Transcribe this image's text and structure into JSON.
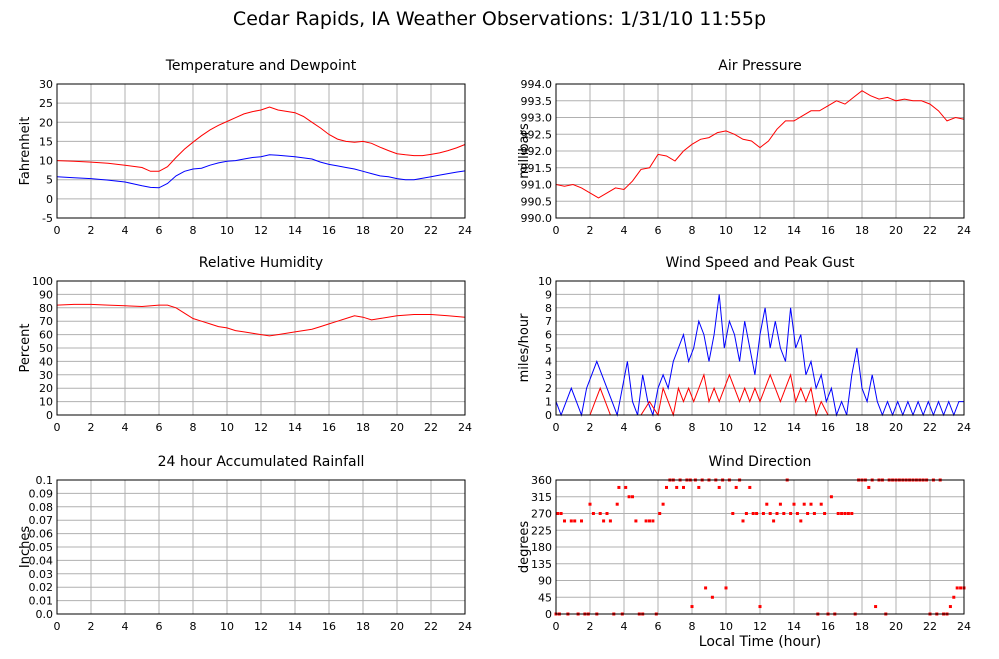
{
  "page": {
    "title": "Cedar Rapids, IA Weather Observations: 1/31/10 11:55p",
    "x_axis_label": "Local Time (hour)"
  },
  "colors": {
    "series_red": "#ff0000",
    "series_blue": "#0000ff",
    "grid": "#b0b0b0",
    "frame": "#000000"
  },
  "chart_data": [
    {
      "id": "temp",
      "type": "line",
      "title": "Temperature and Dewpoint",
      "xlabel": "",
      "ylabel": "Fahrenheit",
      "xlim": [
        0,
        24
      ],
      "ylim": [
        -5,
        30
      ],
      "xticks": [
        0,
        2,
        4,
        6,
        8,
        10,
        12,
        14,
        16,
        18,
        20,
        22,
        24
      ],
      "yticks": [
        -5,
        0,
        5,
        10,
        15,
        20,
        25,
        30
      ],
      "grid": true,
      "series": [
        {
          "color": "#ff0000",
          "x": [
            0,
            1,
            2,
            3,
            4,
            5,
            5.5,
            6,
            6.5,
            7,
            7.5,
            8,
            8.5,
            9,
            9.5,
            10,
            10.5,
            11,
            11.5,
            12,
            12.5,
            13,
            14,
            14.5,
            15,
            15.5,
            16,
            16.5,
            17,
            17.5,
            18,
            18.5,
            19,
            19.5,
            20,
            20.5,
            21,
            21.5,
            22,
            22.5,
            23,
            23.5,
            24
          ],
          "y": [
            10,
            9.8,
            9.6,
            9.3,
            8.8,
            8.2,
            7.2,
            7.2,
            8.4,
            10.8,
            13,
            14.8,
            16.5,
            18,
            19.2,
            20.2,
            21.2,
            22.2,
            22.8,
            23.2,
            24,
            23.2,
            22.5,
            21.5,
            20,
            18.5,
            16.8,
            15.6,
            15,
            14.8,
            15,
            14.5,
            13.5,
            12.6,
            11.8,
            11.5,
            11.3,
            11.3,
            11.6,
            12,
            12.6,
            13.3,
            14.2
          ]
        },
        {
          "color": "#0000ff",
          "x": [
            0,
            1,
            2,
            3,
            4,
            4.5,
            5,
            5.5,
            6,
            6.5,
            7,
            7.5,
            8,
            8.5,
            9,
            9.5,
            10,
            10.5,
            11,
            11.5,
            12,
            12.5,
            13,
            14,
            15,
            15.5,
            16,
            16.5,
            17,
            17.5,
            18,
            18.5,
            19,
            19.5,
            20,
            20.5,
            21,
            21.5,
            22,
            22.5,
            23,
            23.5,
            24
          ],
          "y": [
            5.8,
            5.5,
            5.3,
            4.9,
            4.4,
            3.9,
            3.4,
            3,
            2.9,
            4,
            6,
            7.2,
            7.8,
            8,
            8.8,
            9.4,
            9.8,
            10,
            10.4,
            10.8,
            11,
            11.5,
            11.4,
            11,
            10.4,
            9.6,
            9,
            8.6,
            8.2,
            7.8,
            7.2,
            6.6,
            6,
            5.8,
            5.3,
            5,
            5,
            5.4,
            5.8,
            6.2,
            6.6,
            7,
            7.3
          ]
        }
      ]
    },
    {
      "id": "pressure",
      "type": "line",
      "title": "Air Pressure",
      "xlabel": "",
      "ylabel": "millibars",
      "xlim": [
        0,
        24
      ],
      "ylim": [
        990,
        994
      ],
      "xticks": [
        0,
        2,
        4,
        6,
        8,
        10,
        12,
        14,
        16,
        18,
        20,
        22,
        24
      ],
      "yticks": [
        990.0,
        990.5,
        991.0,
        991.5,
        992.0,
        992.5,
        993.0,
        993.5,
        994.0
      ],
      "ytick_labels": [
        "990.0",
        "990.5",
        "991.0",
        "991.5",
        "992.0",
        "992.5",
        "993.0",
        "993.5",
        "994.0"
      ],
      "grid": true,
      "series": [
        {
          "color": "#ff0000",
          "x": [
            0,
            0.5,
            1,
            1.5,
            2,
            2.5,
            3,
            3.5,
            4,
            4.5,
            5,
            5.5,
            6,
            6.5,
            7,
            7.5,
            8,
            8.5,
            9,
            9.5,
            10,
            10.5,
            11,
            11.5,
            12,
            12.5,
            13,
            13.5,
            14,
            14.5,
            15,
            15.5,
            16,
            16.5,
            17,
            17.5,
            18,
            18.5,
            19,
            19.5,
            20,
            20.5,
            21,
            21.5,
            22,
            22.5,
            23,
            23.5,
            24
          ],
          "y": [
            991.0,
            990.95,
            991.0,
            990.9,
            990.75,
            990.6,
            990.75,
            990.9,
            990.85,
            991.1,
            991.45,
            991.5,
            991.9,
            991.85,
            991.7,
            992.0,
            992.2,
            992.35,
            992.4,
            992.55,
            992.6,
            992.5,
            992.35,
            992.3,
            992.1,
            992.3,
            992.65,
            992.9,
            992.9,
            993.05,
            993.2,
            993.2,
            993.35,
            993.5,
            993.4,
            993.6,
            993.8,
            993.65,
            993.55,
            993.6,
            993.5,
            993.55,
            993.5,
            993.5,
            993.4,
            993.2,
            992.9,
            993.0,
            992.95
          ]
        }
      ]
    },
    {
      "id": "humidity",
      "type": "line",
      "title": "Relative Humidity",
      "xlabel": "",
      "ylabel": "Percent",
      "xlim": [
        0,
        24
      ],
      "ylim": [
        0,
        100
      ],
      "xticks": [
        0,
        2,
        4,
        6,
        8,
        10,
        12,
        14,
        16,
        18,
        20,
        22,
        24
      ],
      "yticks": [
        0,
        10,
        20,
        30,
        40,
        50,
        60,
        70,
        80,
        90,
        100
      ],
      "grid": true,
      "series": [
        {
          "color": "#ff0000",
          "x": [
            0,
            1,
            2,
            3,
            4,
            5,
            6,
            6.5,
            7,
            7.5,
            8,
            8.5,
            9,
            9.5,
            10,
            10.5,
            11,
            11.5,
            12,
            12.5,
            13,
            13.5,
            14,
            15,
            15.5,
            16,
            16.5,
            17,
            17.5,
            18,
            18.5,
            19,
            20,
            21,
            22,
            23,
            24
          ],
          "y": [
            82,
            82.5,
            82.5,
            82,
            81.5,
            81,
            82,
            82,
            80,
            76,
            72,
            70,
            68,
            66,
            65,
            63,
            62,
            61,
            60,
            59,
            60,
            61,
            62,
            64,
            66,
            68,
            70,
            72,
            74,
            73,
            71,
            72,
            74,
            75,
            75,
            74,
            73
          ]
        }
      ]
    },
    {
      "id": "wind",
      "type": "line",
      "title": "Wind Speed and Peak Gust",
      "xlabel": "",
      "ylabel": "miles/hour",
      "xlim": [
        0,
        24
      ],
      "ylim": [
        0,
        10
      ],
      "xticks": [
        0,
        2,
        4,
        6,
        8,
        10,
        12,
        14,
        16,
        18,
        20,
        22,
        24
      ],
      "yticks": [
        0,
        1,
        2,
        3,
        4,
        5,
        6,
        7,
        8,
        9,
        10
      ],
      "grid": true,
      "series": [
        {
          "color": "#0000ff",
          "x": [
            0,
            0.3,
            0.6,
            0.9,
            1.2,
            1.5,
            1.8,
            2.1,
            2.4,
            2.7,
            3,
            3.3,
            3.6,
            3.9,
            4.2,
            4.5,
            4.8,
            5.1,
            5.4,
            5.7,
            6,
            6.3,
            6.6,
            6.9,
            7.2,
            7.5,
            7.8,
            8.1,
            8.4,
            8.7,
            9,
            9.3,
            9.6,
            9.9,
            10.2,
            10.5,
            10.8,
            11.1,
            11.4,
            11.7,
            12,
            12.3,
            12.6,
            12.9,
            13.2,
            13.5,
            13.8,
            14.1,
            14.4,
            14.7,
            15,
            15.3,
            15.6,
            15.9,
            16.2,
            16.5,
            16.8,
            17.1,
            17.4,
            17.7,
            18,
            18.3,
            18.6,
            18.9,
            19.2,
            19.5,
            19.8,
            20.1,
            20.4,
            20.7,
            21,
            21.3,
            21.6,
            21.9,
            22.2,
            22.5,
            22.8,
            23.1,
            23.4,
            23.7,
            24
          ],
          "y": [
            1,
            0,
            1,
            2,
            1,
            0,
            2,
            3,
            4,
            3,
            2,
            1,
            0,
            2,
            4,
            1,
            0,
            3,
            1,
            0,
            2,
            3,
            2,
            4,
            5,
            6,
            4,
            5,
            7,
            6,
            4,
            6,
            9,
            5,
            7,
            6,
            4,
            7,
            5,
            3,
            6,
            8,
            5,
            7,
            5,
            4,
            8,
            5,
            6,
            3,
            4,
            2,
            3,
            1,
            2,
            0,
            1,
            0,
            3,
            5,
            2,
            1,
            3,
            1,
            0,
            1,
            0,
            1,
            0,
            1,
            0,
            1,
            0,
            1,
            0,
            1,
            0,
            1,
            0,
            1,
            1
          ]
        },
        {
          "color": "#ff0000",
          "x": [
            0,
            2,
            2.3,
            2.6,
            2.9,
            3.2,
            3.5,
            5,
            5.5,
            6,
            6.3,
            6.6,
            6.9,
            7.2,
            7.5,
            7.8,
            8.1,
            8.4,
            8.7,
            9,
            9.3,
            9.6,
            9.9,
            10.2,
            10.5,
            10.8,
            11.1,
            11.4,
            11.7,
            12,
            12.3,
            12.6,
            12.9,
            13.2,
            13.5,
            13.8,
            14.1,
            14.4,
            14.7,
            15,
            15.3,
            15.6,
            16,
            24
          ],
          "y": [
            0,
            0,
            1,
            2,
            1,
            0,
            0,
            0,
            1,
            0,
            2,
            1,
            0,
            2,
            1,
            2,
            1,
            2,
            3,
            1,
            2,
            1,
            2,
            3,
            2,
            1,
            2,
            1,
            2,
            1,
            2,
            3,
            2,
            1,
            2,
            3,
            1,
            2,
            1,
            2,
            0,
            1,
            0,
            0
          ]
        }
      ]
    },
    {
      "id": "rain",
      "type": "line",
      "title": "24 hour Accumulated Rainfall",
      "xlabel": "",
      "ylabel": "Inches",
      "xlim": [
        0,
        24
      ],
      "ylim": [
        0,
        0.1
      ],
      "xticks": [
        0,
        2,
        4,
        6,
        8,
        10,
        12,
        14,
        16,
        18,
        20,
        22,
        24
      ],
      "yticks": [
        0,
        0.01,
        0.02,
        0.03,
        0.04,
        0.05,
        0.06,
        0.07,
        0.08,
        0.09,
        0.1
      ],
      "ytick_labels": [
        "0.0",
        "0.01",
        "0.02",
        "0.03",
        "0.04",
        "0.05",
        "0.06",
        "0.07",
        "0.08",
        "0.09",
        "0.1"
      ],
      "grid": true,
      "series": [
        {
          "color": "#ff0000",
          "x": [
            0,
            24
          ],
          "y": [
            0,
            0
          ]
        }
      ]
    },
    {
      "id": "direction",
      "type": "scatter",
      "title": "Wind Direction",
      "xlabel": "Local Time (hour)",
      "ylabel": "degrees",
      "xlim": [
        0,
        24
      ],
      "ylim": [
        0,
        360
      ],
      "xticks": [
        0,
        2,
        4,
        6,
        8,
        10,
        12,
        14,
        16,
        18,
        20,
        22,
        24
      ],
      "yticks": [
        0,
        45,
        90,
        135,
        180,
        225,
        270,
        315,
        360
      ],
      "grid": true,
      "series": [
        {
          "color": "#ff0000",
          "x": [
            0,
            0.1,
            0.2,
            0.3,
            0.5,
            0.7,
            0.9,
            1.1,
            1.3,
            1.5,
            1.7,
            1.9,
            2.0,
            2.2,
            2.4,
            2.6,
            2.8,
            3.0,
            3.2,
            3.4,
            3.6,
            3.7,
            3.9,
            4.1,
            4.3,
            4.5,
            4.7,
            4.9,
            5.1,
            5.3,
            5.5,
            5.7,
            5.9,
            6.1,
            6.3,
            6.5,
            6.7,
            6.9,
            7.1,
            7.3,
            7.5,
            7.7,
            7.9,
            8.0,
            8.2,
            8.4,
            8.6,
            8.8,
            9.0,
            9.2,
            9.4,
            9.6,
            9.8,
            10.0,
            10.2,
            10.4,
            10.6,
            10.8,
            11.0,
            11.2,
            11.4,
            11.6,
            11.8,
            12.0,
            12.2,
            12.4,
            12.6,
            12.8,
            13.0,
            13.2,
            13.4,
            13.6,
            13.8,
            14.0,
            14.2,
            14.4,
            14.6,
            14.8,
            15.0,
            15.2,
            15.4,
            15.6,
            15.8,
            16.0,
            16.2,
            16.4,
            16.6,
            16.8,
            17.0,
            17.2,
            17.4,
            17.6,
            17.8,
            18.0,
            18.2,
            18.4,
            18.6,
            18.8,
            19.0,
            19.2,
            19.4,
            19.6,
            19.8,
            20.0,
            20.2,
            20.4,
            20.6,
            20.8,
            21.0,
            21.2,
            21.4,
            21.6,
            21.8,
            22.0,
            22.2,
            22.4,
            22.6,
            22.8,
            23.0,
            23.2,
            23.4,
            23.6,
            23.8,
            24.0
          ],
          "y": [
            0,
            270,
            0,
            270,
            250,
            0,
            250,
            250,
            0,
            250,
            0,
            0,
            295,
            270,
            0,
            270,
            250,
            270,
            250,
            0,
            295,
            340,
            0,
            340,
            315,
            315,
            250,
            0,
            0,
            250,
            250,
            250,
            0,
            270,
            295,
            340,
            360,
            360,
            340,
            360,
            340,
            360,
            360,
            20,
            360,
            340,
            360,
            70,
            360,
            45,
            360,
            340,
            360,
            70,
            360,
            270,
            340,
            360,
            250,
            270,
            340,
            270,
            270,
            20,
            270,
            295,
            270,
            250,
            270,
            295,
            270,
            360,
            270,
            295,
            270,
            250,
            295,
            270,
            295,
            270,
            0,
            295,
            270,
            0,
            315,
            0,
            270,
            270,
            270,
            270,
            270,
            0,
            360,
            360,
            360,
            340,
            360,
            20,
            360,
            360,
            0,
            360,
            360,
            360,
            360,
            360,
            360,
            360,
            360,
            360,
            360,
            360,
            360,
            0,
            360,
            0,
            360,
            0,
            0,
            20,
            45,
            70,
            70,
            70
          ]
        }
      ]
    }
  ]
}
